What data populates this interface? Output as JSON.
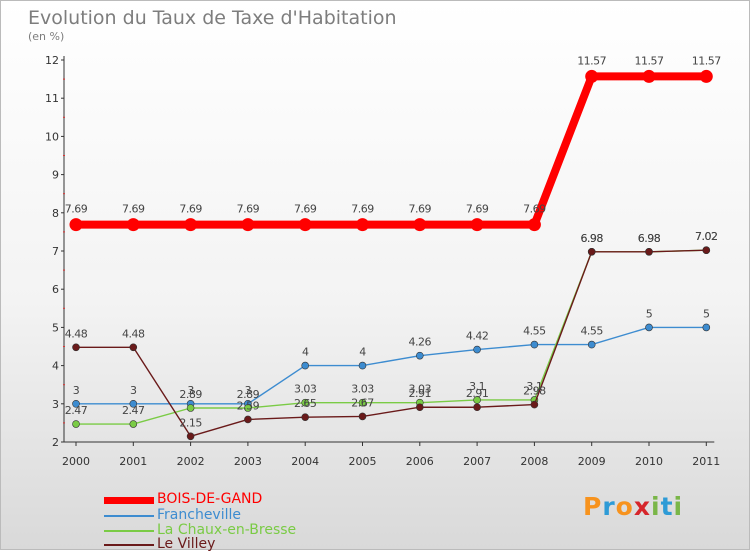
{
  "title": "Evolution du Taux de Taxe d'Habitation",
  "subtitle": "(en %)",
  "logo": {
    "text": "Proxiti",
    "colors": [
      "#f7931e",
      "#2e9bd6",
      "#f7931e",
      "#d6262b",
      "#7ab648",
      "#2e9bd6",
      "#7ab648"
    ]
  },
  "chart_data": {
    "type": "line",
    "x": [
      "2000",
      "2001",
      "2002",
      "2003",
      "2004",
      "2005",
      "2006",
      "2007",
      "2008",
      "2009",
      "2010",
      "2011"
    ],
    "y_ticks": [
      2,
      3,
      4,
      5,
      6,
      7,
      8,
      9,
      10,
      11,
      12
    ],
    "ylim": [
      2,
      12
    ],
    "grid": false,
    "legend_position": "bottom-left",
    "series": [
      {
        "name": "BOIS-DE-GAND",
        "color": "#ff0000",
        "values": [
          7.69,
          7.69,
          7.69,
          7.69,
          7.69,
          7.69,
          7.69,
          7.69,
          7.69,
          11.57,
          11.57,
          11.57
        ],
        "labels": [
          "7.69",
          "7.69",
          "7.69",
          "7.69",
          "7.69",
          "7.69",
          "7.69",
          "7.69",
          "7.69",
          "11.57",
          "11.57",
          "11.57"
        ]
      },
      {
        "name": "Francheville",
        "color": "#3d8cd0",
        "values": [
          3,
          3,
          3,
          3,
          4,
          4,
          4.26,
          4.42,
          4.55,
          4.55,
          5,
          5
        ],
        "labels": [
          "3",
          "3",
          "3",
          "3",
          "4",
          "4",
          "4.26",
          "4.42",
          "4.55",
          "4.55",
          "5",
          "5"
        ]
      },
      {
        "name": "La Chaux-en-Bresse",
        "color": "#7acb45",
        "values": [
          2.47,
          2.47,
          2.89,
          2.89,
          3.03,
          3.03,
          3.03,
          3.1,
          3.1,
          6.98,
          6.98,
          7.02
        ],
        "labels": [
          "2.47",
          "2.47",
          "2.89",
          "2.89",
          "3.03",
          "3.03",
          "3.03",
          "3.1",
          "3.1",
          "6.98",
          "6.98",
          "7.02"
        ]
      },
      {
        "name": "Le Villey",
        "color": "#6a1a1a",
        "values": [
          4.48,
          4.48,
          2.15,
          2.59,
          2.65,
          2.67,
          2.91,
          2.91,
          2.98,
          6.98,
          6.98,
          7.02
        ],
        "labels": [
          "4.48",
          "4.48",
          "2.15",
          "2.59",
          "2.65",
          "2.67",
          "2.91",
          "2.91",
          "2.98",
          "6.98",
          "6.98",
          "7.02"
        ]
      }
    ]
  }
}
